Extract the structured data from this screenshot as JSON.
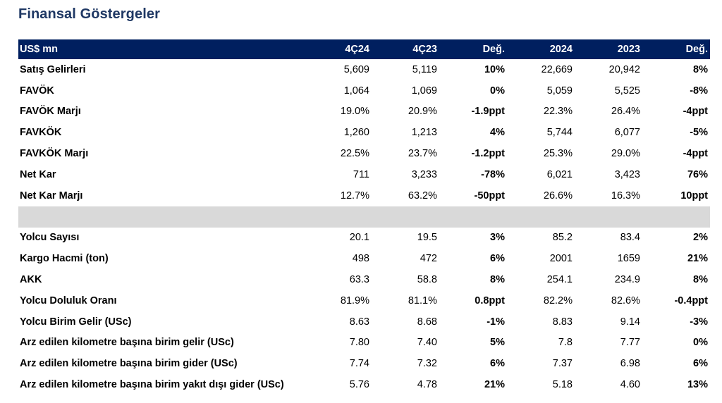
{
  "title": "Finansal Göstergeler",
  "header": {
    "unit": "US$ mn",
    "col_4q24": "4Ç24",
    "col_4q23": "4Ç23",
    "col_chg_q": "Değ.",
    "col_2024": "2024",
    "col_2023": "2023",
    "col_chg_y": "Değ."
  },
  "financials": [
    {
      "label": "Satış Gelirleri",
      "q24": "5,609",
      "q23": "5,119",
      "chg_q": "10%",
      "y24": "22,669",
      "y23": "20,942",
      "chg_y": "8%"
    },
    {
      "label": "FAVÖK",
      "q24": "1,064",
      "q23": "1,069",
      "chg_q": "0%",
      "y24": "5,059",
      "y23": "5,525",
      "chg_y": "-8%"
    },
    {
      "label": "FAVÖK Marjı",
      "q24": "19.0%",
      "q23": "20.9%",
      "chg_q": "-1.9ppt",
      "y24": "22.3%",
      "y23": "26.4%",
      "chg_y": "-4ppt"
    },
    {
      "label": "FAVKÖK",
      "q24": "1,260",
      "q23": "1,213",
      "chg_q": "4%",
      "y24": "5,744",
      "y23": "6,077",
      "chg_y": "-5%"
    },
    {
      "label": "FAVKÖK Marjı",
      "q24": "22.5%",
      "q23": "23.7%",
      "chg_q": "-1.2ppt",
      "y24": "25.3%",
      "y23": "29.0%",
      "chg_y": "-4ppt"
    },
    {
      "label": "Net Kar",
      "q24": "711",
      "q23": "3,233",
      "chg_q": "-78%",
      "y24": "6,021",
      "y23": "3,423",
      "chg_y": "76%"
    },
    {
      "label": "Net Kar Marjı",
      "q24": "12.7%",
      "q23": "63.2%",
      "chg_q": "-50ppt",
      "y24": "26.6%",
      "y23": "16.3%",
      "chg_y": "10ppt"
    }
  ],
  "operations": [
    {
      "label": "Yolcu Sayısı",
      "q24": "20.1",
      "q23": "19.5",
      "chg_q": "3%",
      "y24": "85.2",
      "y23": "83.4",
      "chg_y": "2%"
    },
    {
      "label": "Kargo Hacmi (ton)",
      "q24": "498",
      "q23": "472",
      "chg_q": "6%",
      "y24": "2001",
      "y23": "1659",
      "chg_y": "21%"
    },
    {
      "label": "AKK",
      "q24": "63.3",
      "q23": "58.8",
      "chg_q": "8%",
      "y24": "254.1",
      "y23": "234.9",
      "chg_y": "8%"
    },
    {
      "label": "Yolcu Doluluk Oranı",
      "q24": "81.9%",
      "q23": "81.1%",
      "chg_q": "0.8ppt",
      "y24": "82.2%",
      "y23": "82.6%",
      "chg_y": "-0.4ppt"
    },
    {
      "label": "Yolcu Birim Gelir (USc)",
      "q24": "8.63",
      "q23": "8.68",
      "chg_q": "-1%",
      "y24": "8.83",
      "y23": "9.14",
      "chg_y": "-3%"
    },
    {
      "label": "Arz edilen kilometre başına birim gelir (USc)",
      "q24": "7.80",
      "q23": "7.40",
      "chg_q": "5%",
      "y24": "7.8",
      "y23": "7.77",
      "chg_y": "0%"
    },
    {
      "label": "Arz edilen kilometre başına birim gider (USc)",
      "q24": "7.74",
      "q23": "7.32",
      "chg_q": "6%",
      "y24": "7.37",
      "y23": "6.98",
      "chg_y": "6%"
    },
    {
      "label": "Arz edilen kilometre başına birim yakıt dışı gider  (USc)",
      "q24": "5.76",
      "q23": "4.78",
      "chg_q": "21%",
      "y24": "5.18",
      "y23": "4.60",
      "chg_y": "13%"
    }
  ]
}
